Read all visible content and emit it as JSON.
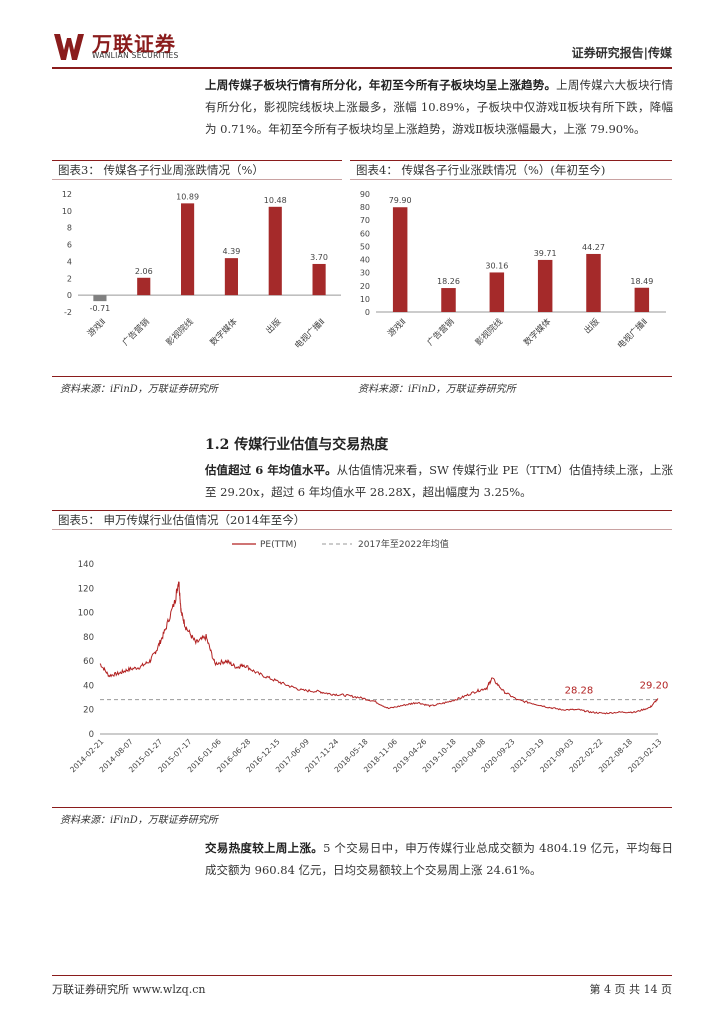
{
  "header": {
    "logo_cn": "万联证券",
    "logo_en": "WANLIAN SECURITIES",
    "report_type": "证券研究报告|传媒",
    "brand_color": "#8a1c1c"
  },
  "paragraph1": {
    "lead": "上周传媒子板块行情有所分化，年初至今所有子板块均呈上涨趋势。",
    "body": "上周传媒六大板块行情有所分化，影视院线板块上涨最多，涨幅 10.89%，子板块中仅游戏Ⅱ板块有所下跌，降幅为 0.71%。年初至今所有子板块均呈上涨趋势，游戏Ⅱ板块涨幅最大，上涨 79.90%。"
  },
  "figure3": {
    "title": "图表3：  传媒各子行业周涨跌情况（%）",
    "source": "资料来源：iFinD，万联证券研究所"
  },
  "figure4": {
    "title": "图表4：  传媒各子行业涨跌情况（%）(年初至今)",
    "source": "资料来源：iFinD，万联证券研究所"
  },
  "section": {
    "title": "1.2  传媒行业估值与交易热度"
  },
  "paragraph2": {
    "lead": "估值超过 6 年均值水平。",
    "body": "从估值情况来看，SW 传媒行业 PE（TTM）估值持续上涨，上涨至 29.20x，超过 6 年均值水平 28.28X，超出幅度为 3.25%。"
  },
  "figure5": {
    "title": "图表5：  申万传媒行业估值情况（2014年至今）",
    "source": "资料来源：iFinD，万联证券研究所"
  },
  "paragraph3": {
    "lead": "交易热度较上周上涨。",
    "body": "5 个交易日中，申万传媒行业总成交额为 4804.19 亿元，平均每日成交额为 960.84 亿元，日均交易额较上个交易周上涨 24.61%。"
  },
  "footer": {
    "left": "万联证券研究所 www.wlzq.cn",
    "right": "第 4 页 共 14 页"
  },
  "chart_data": [
    {
      "type": "bar",
      "categories": [
        "游戏Ⅱ",
        "广告营销",
        "影视院线",
        "数字媒体",
        "出版",
        "电视广播Ⅱ"
      ],
      "values": [
        -0.71,
        2.06,
        10.89,
        4.39,
        10.48,
        3.7
      ],
      "value_labels": [
        "-0.71",
        "2.06",
        "10.89",
        "4.39",
        "10.48",
        "3.70"
      ],
      "colors": [
        "#808080",
        "#a52a2a",
        "#a52a2a",
        "#a52a2a",
        "#a52a2a",
        "#a52a2a"
      ],
      "ylim": [
        -2,
        12
      ],
      "yticks": [
        "-2",
        "0",
        "2",
        "4",
        "6",
        "8",
        "10",
        "12"
      ],
      "grid": false
    },
    {
      "type": "bar",
      "categories": [
        "游戏Ⅱ",
        "广告营销",
        "影视院线",
        "数字媒体",
        "出版",
        "电视广播Ⅱ"
      ],
      "values": [
        79.9,
        18.26,
        30.16,
        39.71,
        44.27,
        18.49
      ],
      "value_labels": [
        "79.90",
        "18.26",
        "30.16",
        "39.71",
        "44.27",
        "18.49"
      ],
      "colors": [
        "#a52a2a",
        "#a52a2a",
        "#a52a2a",
        "#a52a2a",
        "#a52a2a",
        "#a52a2a"
      ],
      "ylim": [
        0,
        90
      ],
      "yticks": [
        "0",
        "10",
        "20",
        "30",
        "40",
        "50",
        "60",
        "70",
        "80",
        "90"
      ],
      "grid": false
    },
    {
      "type": "line",
      "legend": [
        "PE(TTM)",
        "2017年至2022年均值"
      ],
      "legend_placement": "top-center",
      "series_colors": [
        "#b22222",
        "#999999"
      ],
      "ylim": [
        0,
        140
      ],
      "yticks": [
        "0",
        "20",
        "40",
        "60",
        "80",
        "100",
        "120",
        "140"
      ],
      "x_tick_labels": [
        "2014-02-21",
        "2014-08-07",
        "2015-01-27",
        "2015-07-17",
        "2016-01-06",
        "2016-06-28",
        "2016-12-15",
        "2017-06-09",
        "2017-11-24",
        "2018-05-18",
        "2018-11-06",
        "2019-04-26",
        "2019-10-18",
        "2020-04-08",
        "2020-09-23",
        "2021-03-19",
        "2021-09-03",
        "2022-02-22",
        "2022-08-18",
        "2023-02-13"
      ],
      "mean_value": 28.28,
      "last_value": 29.2,
      "annotations": [
        "28.28",
        "29.20"
      ],
      "series": [
        {
          "name": "PE(TTM)",
          "x": [
            "2014-02-21",
            "2014-04",
            "2014-06",
            "2014-08-07",
            "2014-10",
            "2014-12",
            "2015-01-27",
            "2015-03",
            "2015-05",
            "2015-06-05",
            "2015-06-20",
            "2015-07-17",
            "2015-09",
            "2015-11",
            "2016-01-06",
            "2016-03",
            "2016-05",
            "2016-06-28",
            "2016-09",
            "2016-12-15",
            "2017-03",
            "2017-06-09",
            "2017-09",
            "2017-11-24",
            "2018-02",
            "2018-05-18",
            "2018-08",
            "2018-11-06",
            "2019-02",
            "2019-04-26",
            "2019-07",
            "2019-10-18",
            "2020-01",
            "2020-04-08",
            "2020-06",
            "2020-07-15",
            "2020-09-23",
            "2020-12",
            "2021-03-19",
            "2021-06",
            "2021-09-03",
            "2021-12",
            "2022-02-22",
            "2022-05",
            "2022-08-18",
            "2022-11",
            "2023-02-13",
            "2023-03-31"
          ],
          "values": [
            58,
            48,
            50,
            53,
            55,
            60,
            70,
            85,
            110,
            127,
            100,
            88,
            75,
            80,
            58,
            60,
            55,
            57,
            50,
            45,
            40,
            36,
            35,
            33,
            32,
            30,
            27,
            21,
            24,
            26,
            23,
            26,
            30,
            35,
            38,
            46,
            35,
            28,
            25,
            22,
            20,
            20,
            18,
            17,
            18,
            18,
            22,
            29.2
          ]
        },
        {
          "name": "2017年至2022年均值",
          "x": [
            "2014-02-21",
            "2023-03-31"
          ],
          "values": [
            28.28,
            28.28
          ]
        }
      ]
    }
  ]
}
